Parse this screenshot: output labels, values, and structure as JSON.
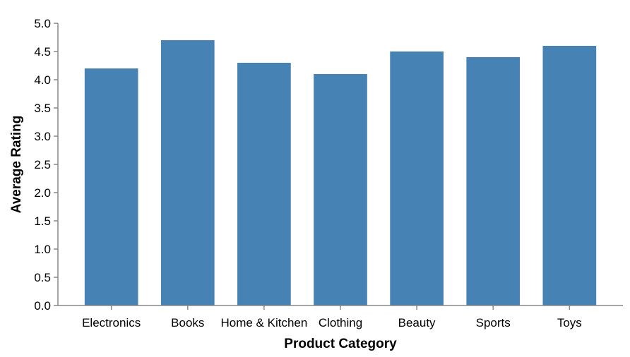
{
  "chart_data": {
    "type": "bar",
    "title": "",
    "xlabel": "Product Category",
    "ylabel": "Average Rating",
    "categories": [
      "Electronics",
      "Books",
      "Home & Kitchen",
      "Clothing",
      "Beauty",
      "Sports",
      "Toys"
    ],
    "values": [
      4.2,
      4.7,
      4.3,
      4.1,
      4.5,
      4.4,
      4.6
    ],
    "ylim": [
      0,
      5
    ],
    "yticks": [
      "0.0",
      "0.5",
      "1.0",
      "1.5",
      "2.0",
      "2.5",
      "3.0",
      "3.5",
      "4.0",
      "4.5",
      "5.0"
    ],
    "grid": false,
    "legend": "none",
    "bar_color": "#4682b4"
  }
}
